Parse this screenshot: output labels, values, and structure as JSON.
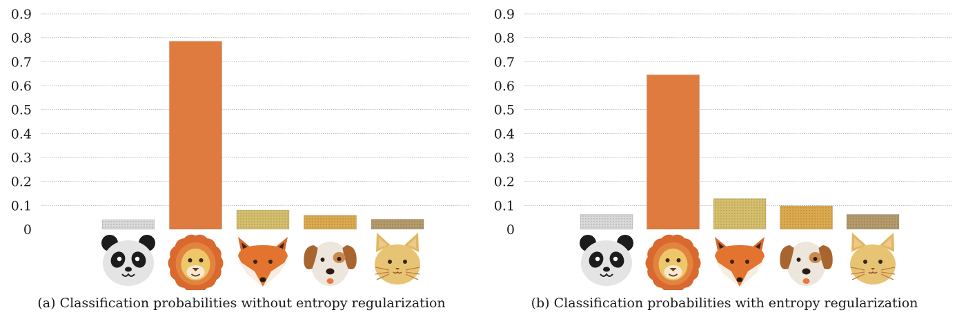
{
  "chart_data": [
    {
      "type": "bar",
      "caption": "(a) Classification probabilities without entropy regularization",
      "categories": [
        "panda-icon",
        "lion-icon",
        "fox-icon",
        "dog-icon",
        "cat-icon"
      ],
      "values": [
        0.04,
        0.785,
        0.08,
        0.058,
        0.042
      ],
      "ylim": [
        0,
        0.9
      ],
      "yticks": [
        "0",
        "0.1",
        "0.2",
        "0.3",
        "0.4",
        "0.5",
        "0.6",
        "0.7",
        "0.8",
        "0.9"
      ],
      "grid": true,
      "colors": [
        "#d9d9d9",
        "#e07b3f",
        "#d6bf6c",
        "#dcaa4e",
        "#b59b6c"
      ]
    },
    {
      "type": "bar",
      "caption": "(b) Classification probabilities with entropy regularization",
      "categories": [
        "panda-icon",
        "lion-icon",
        "fox-icon",
        "dog-icon",
        "cat-icon"
      ],
      "values": [
        0.062,
        0.645,
        0.128,
        0.098,
        0.062
      ],
      "ylim": [
        0,
        0.9
      ],
      "yticks": [
        "0",
        "0.1",
        "0.2",
        "0.3",
        "0.4",
        "0.5",
        "0.6",
        "0.7",
        "0.8",
        "0.9"
      ],
      "grid": true,
      "colors": [
        "#d9d9d9",
        "#e07b3f",
        "#d6bf6c",
        "#dcaa4e",
        "#b59b6c"
      ]
    }
  ]
}
